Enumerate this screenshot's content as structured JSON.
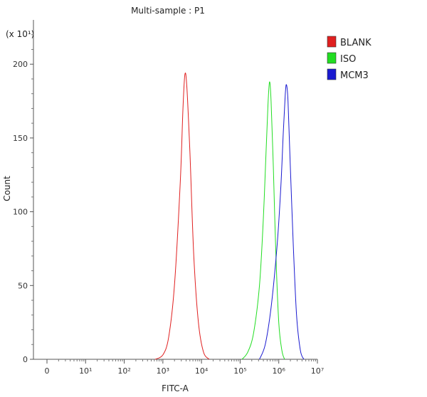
{
  "chart_data": {
    "type": "line",
    "title": "Multi-sample : P1",
    "xlabel": "FITC-A",
    "ylabel": "Count",
    "y_multiplier": "(x 10¹)",
    "x_scale": "log",
    "x_ticks": [
      {
        "value": 0,
        "label": "0"
      },
      {
        "value": 1,
        "label": "10¹"
      },
      {
        "value": 2,
        "label": "10²"
      },
      {
        "value": 3,
        "label": "10³"
      },
      {
        "value": 4,
        "label": "10⁴"
      },
      {
        "value": 5,
        "label": "10⁵"
      },
      {
        "value": 6,
        "label": "10⁶"
      },
      {
        "value": 7,
        "label": "10⁷"
      }
    ],
    "y_ticks": [
      0,
      50,
      100,
      150,
      200
    ],
    "xlim": [
      -0.35,
      7.0
    ],
    "ylim": [
      0,
      230
    ],
    "grid": false,
    "legend_position": "right",
    "series": [
      {
        "name": "BLANK",
        "color": "#e02020",
        "points": [
          [
            2.8,
            0
          ],
          [
            3.0,
            3
          ],
          [
            3.15,
            15
          ],
          [
            3.3,
            50
          ],
          [
            3.45,
            120
          ],
          [
            3.52,
            170
          ],
          [
            3.57,
            193
          ],
          [
            3.62,
            185
          ],
          [
            3.7,
            140
          ],
          [
            3.8,
            70
          ],
          [
            3.92,
            25
          ],
          [
            4.05,
            5
          ],
          [
            4.2,
            0
          ]
        ]
      },
      {
        "name": "ISO",
        "color": "#22dd22",
        "points": [
          [
            5.05,
            0
          ],
          [
            5.2,
            5
          ],
          [
            5.35,
            18
          ],
          [
            5.5,
            50
          ],
          [
            5.6,
            95
          ],
          [
            5.67,
            140
          ],
          [
            5.72,
            172
          ],
          [
            5.76,
            188
          ],
          [
            5.8,
            175
          ],
          [
            5.86,
            130
          ],
          [
            5.92,
            75
          ],
          [
            6.0,
            25
          ],
          [
            6.08,
            6
          ],
          [
            6.15,
            0
          ]
        ]
      },
      {
        "name": "MCM3",
        "color": "#1a1ad0",
        "points": [
          [
            5.5,
            0
          ],
          [
            5.65,
            10
          ],
          [
            5.8,
            35
          ],
          [
            5.95,
            75
          ],
          [
            6.05,
            115
          ],
          [
            6.12,
            155
          ],
          [
            6.17,
            180
          ],
          [
            6.2,
            186
          ],
          [
            6.24,
            175
          ],
          [
            6.3,
            130
          ],
          [
            6.38,
            75
          ],
          [
            6.46,
            30
          ],
          [
            6.56,
            6
          ],
          [
            6.65,
            0
          ]
        ]
      }
    ]
  }
}
